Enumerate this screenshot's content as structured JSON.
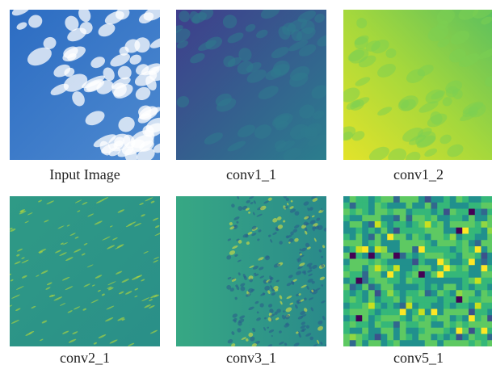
{
  "figure": {
    "panels": [
      {
        "caption": "Input Image"
      },
      {
        "caption": "conv1_1"
      },
      {
        "caption": "conv1_2"
      },
      {
        "caption": "conv2_1"
      },
      {
        "caption": "conv3_1"
      },
      {
        "caption": "conv5_1"
      }
    ]
  }
}
